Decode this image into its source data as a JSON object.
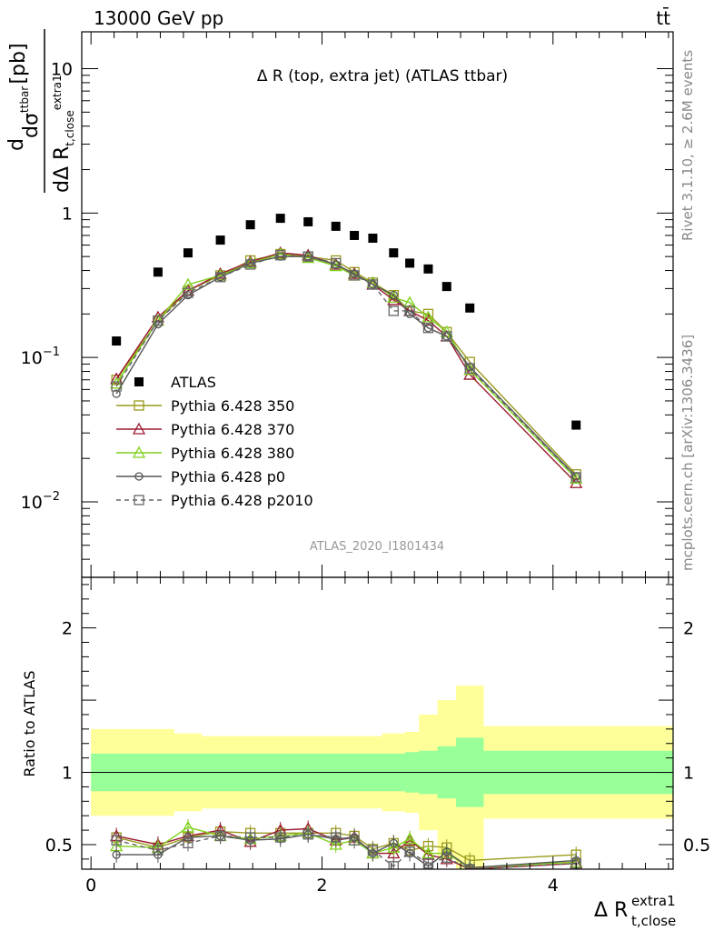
{
  "header": {
    "process": "13000 GeV pp",
    "channel": "tt̄",
    "side_rivet": "Rivet 3.1.10, ≥ 2.6M events",
    "side_mcplots": "mcplots.cern.ch [arXiv:1306.3436]"
  },
  "chart_data": [
    {
      "type": "scatter",
      "title": "Δ R (top, extra jet) (ATLAS ttbar)",
      "analysis_tag": "ATLAS_2020_I1801434",
      "ylabel": "dσ^ttbar / dΔ R_t,close^extra1 [pb]",
      "xlabel": "Δ R_t,close^extra1",
      "yscale": "log",
      "xlim": [
        -0.08,
        5.04
      ],
      "ylim": [
        0.003,
        18
      ],
      "yticks": [
        {
          "v": 0.01,
          "label": "10",
          "exp": "−2"
        },
        {
          "v": 0.1,
          "label": "10",
          "exp": "−1"
        },
        {
          "v": 1,
          "label": "1",
          "exp": ""
        },
        {
          "v": 10,
          "label": "10",
          "exp": ""
        }
      ],
      "legend": {
        "position": "lower-left",
        "entries": [
          "ATLAS",
          "Pythia 6.428 350",
          "Pythia 6.428 370",
          "Pythia 6.428 380",
          "Pythia 6.428 p0",
          "Pythia 6.428 p2010"
        ]
      },
      "x": [
        0.22,
        0.58,
        0.84,
        1.12,
        1.38,
        1.64,
        1.88,
        2.12,
        2.28,
        2.44,
        2.62,
        2.76,
        2.92,
        3.08,
        3.28,
        4.2
      ],
      "data": {
        "name": "ATLAS",
        "values": [
          0.13,
          0.39,
          0.53,
          0.65,
          0.83,
          0.92,
          0.87,
          0.81,
          0.7,
          0.67,
          0.53,
          0.45,
          0.41,
          0.31,
          0.22,
          0.034
        ]
      },
      "series": [
        {
          "name": "Pythia 6.428 350",
          "color": "#9a9a1e",
          "marker": "square-open",
          "dash": false,
          "values": [
            0.07,
            0.18,
            0.29,
            0.37,
            0.47,
            0.52,
            0.5,
            0.47,
            0.39,
            0.33,
            0.27,
            0.21,
            0.2,
            0.15,
            0.093,
            0.0155
          ]
        },
        {
          "name": "Pythia 6.428 370",
          "color": "#9b1b30",
          "marker": "triangle-open",
          "dash": false,
          "values": [
            0.071,
            0.19,
            0.29,
            0.38,
            0.46,
            0.53,
            0.51,
            0.44,
            0.38,
            0.32,
            0.25,
            0.21,
            0.18,
            0.14,
            0.076,
            0.0135
          ]
        },
        {
          "name": "Pythia 6.428 380",
          "color": "#7fd11b",
          "marker": "triangle-open",
          "dash": false,
          "values": [
            0.066,
            0.18,
            0.32,
            0.37,
            0.45,
            0.52,
            0.49,
            0.43,
            0.37,
            0.33,
            0.26,
            0.24,
            0.19,
            0.15,
            0.082,
            0.0145
          ]
        },
        {
          "name": "Pythia 6.428 p0",
          "color": "#555555",
          "marker": "circle-open",
          "dash": false,
          "values": [
            0.056,
            0.17,
            0.27,
            0.36,
            0.45,
            0.5,
            0.5,
            0.44,
            0.38,
            0.32,
            0.27,
            0.2,
            0.16,
            0.14,
            0.086,
            0.015
          ]
        },
        {
          "name": "Pythia 6.428 p2010",
          "color": "#666666",
          "marker": "square-open",
          "dash": true,
          "values": [
            0.063,
            0.18,
            0.28,
            0.36,
            0.44,
            0.51,
            0.5,
            0.45,
            0.37,
            0.32,
            0.21,
            0.21,
            0.16,
            0.14,
            0.084,
            0.0148
          ]
        }
      ]
    },
    {
      "type": "line",
      "ylabel": "Ratio to ATLAS",
      "ylim": [
        0.33,
        2.35
      ],
      "yticks": [
        0.5,
        1,
        2
      ],
      "xticks": [
        0,
        2,
        4
      ],
      "bins": [
        0.0,
        0.36,
        0.72,
        0.96,
        1.24,
        1.52,
        1.76,
        2.0,
        2.24,
        2.36,
        2.52,
        2.72,
        2.84,
        3.0,
        3.16,
        3.4,
        5.04
      ],
      "band_inner": {
        "lo": [
          0.87,
          0.87,
          0.87,
          0.87,
          0.87,
          0.87,
          0.87,
          0.87,
          0.87,
          0.87,
          0.87,
          0.86,
          0.85,
          0.82,
          0.76,
          0.85
        ],
        "hi": [
          1.13,
          1.13,
          1.13,
          1.13,
          1.13,
          1.13,
          1.13,
          1.13,
          1.13,
          1.13,
          1.13,
          1.14,
          1.15,
          1.18,
          1.24,
          1.15
        ]
      },
      "band_outer": {
        "lo": [
          0.7,
          0.7,
          0.73,
          0.75,
          0.75,
          0.75,
          0.75,
          0.75,
          0.75,
          0.75,
          0.73,
          0.72,
          0.6,
          0.4,
          0.3,
          0.68
        ],
        "hi": [
          1.3,
          1.3,
          1.27,
          1.25,
          1.25,
          1.25,
          1.25,
          1.25,
          1.25,
          1.25,
          1.27,
          1.28,
          1.4,
          1.5,
          1.6,
          1.32
        ]
      },
      "ratio_series": [
        {
          "name": "Pythia 6.428 350",
          "values": [
            0.55,
            0.48,
            0.55,
            0.59,
            0.58,
            0.58,
            0.58,
            0.58,
            0.56,
            0.47,
            0.51,
            0.46,
            0.49,
            0.48,
            0.39,
            0.43
          ]
        },
        {
          "name": "Pythia 6.428 370",
          "values": [
            0.56,
            0.5,
            0.56,
            0.6,
            0.52,
            0.6,
            0.61,
            0.53,
            0.55,
            0.44,
            0.44,
            0.53,
            0.43,
            0.4,
            0.33,
            0.37
          ]
        },
        {
          "name": "Pythia 6.428 380",
          "values": [
            0.49,
            0.48,
            0.62,
            0.56,
            0.54,
            0.56,
            0.58,
            0.5,
            0.53,
            0.44,
            0.48,
            0.54,
            0.44,
            0.44,
            0.34,
            0.38
          ]
        },
        {
          "name": "Pythia 6.428 p0",
          "values": [
            0.43,
            0.43,
            0.55,
            0.56,
            0.53,
            0.54,
            0.57,
            0.54,
            0.55,
            0.44,
            0.51,
            0.44,
            0.35,
            0.45,
            0.34,
            0.39
          ]
        },
        {
          "name": "Pythia 6.428 p2010",
          "values": [
            0.53,
            0.46,
            0.51,
            0.56,
            0.55,
            0.55,
            0.57,
            0.55,
            0.53,
            0.46,
            0.35,
            0.45,
            0.37,
            0.41,
            0.33,
            0.37
          ]
        }
      ]
    }
  ]
}
